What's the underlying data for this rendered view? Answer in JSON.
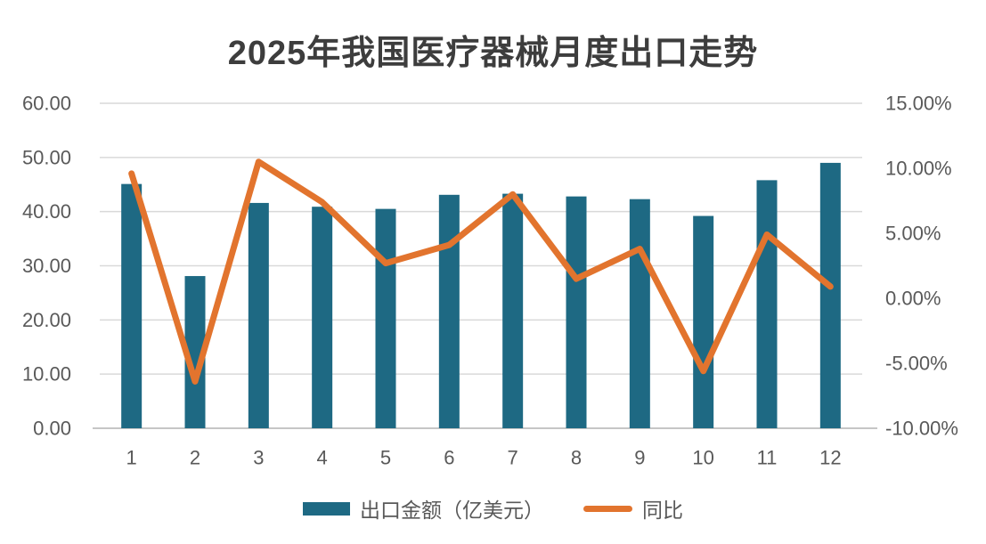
{
  "title": "2025年我国医疗器械月度出口走势",
  "colors": {
    "background": "#ffffff",
    "bar": "#1e6983",
    "line": "#e2742e",
    "title_text": "#3d3d3d",
    "axis_text": "#595959",
    "gridline": "#d9d9d9",
    "axis_line": "#c6c6c6"
  },
  "legend": {
    "items": [
      {
        "label": "出口金额（亿美元）",
        "series": "bar"
      },
      {
        "label": "同比",
        "series": "line"
      }
    ]
  },
  "chart_data": {
    "type": "combo-bar-line",
    "title": "2025年我国医疗器械月度出口走势",
    "categories": [
      "1",
      "2",
      "3",
      "4",
      "5",
      "6",
      "7",
      "8",
      "9",
      "10",
      "11",
      "12"
    ],
    "series": [
      {
        "name": "出口金额（亿美元）",
        "type": "bar",
        "axis": "left",
        "color": "#1e6983",
        "values": [
          45.1,
          28.1,
          41.6,
          40.9,
          40.5,
          43.1,
          43.3,
          42.8,
          42.3,
          39.2,
          45.8,
          49.0
        ]
      },
      {
        "name": "同比",
        "type": "line",
        "axis": "right",
        "unit": "%",
        "color": "#e2742e",
        "values": [
          9.6,
          -6.4,
          10.5,
          7.4,
          2.7,
          4.1,
          8.0,
          1.5,
          3.8,
          -5.6,
          4.9,
          0.9
        ]
      }
    ],
    "axes": {
      "left": {
        "min": 0,
        "max": 60,
        "step": 10,
        "tick_labels": [
          "0.00",
          "10.00",
          "20.00",
          "30.00",
          "40.00",
          "50.00",
          "60.00"
        ]
      },
      "right": {
        "min": -10,
        "max": 15,
        "step": 5,
        "tick_labels": [
          "-10.00%",
          "-5.00%",
          "0.00%",
          "5.00%",
          "10.00%",
          "15.00%"
        ]
      }
    },
    "grid": "horizontal",
    "legend_position": "bottom"
  }
}
